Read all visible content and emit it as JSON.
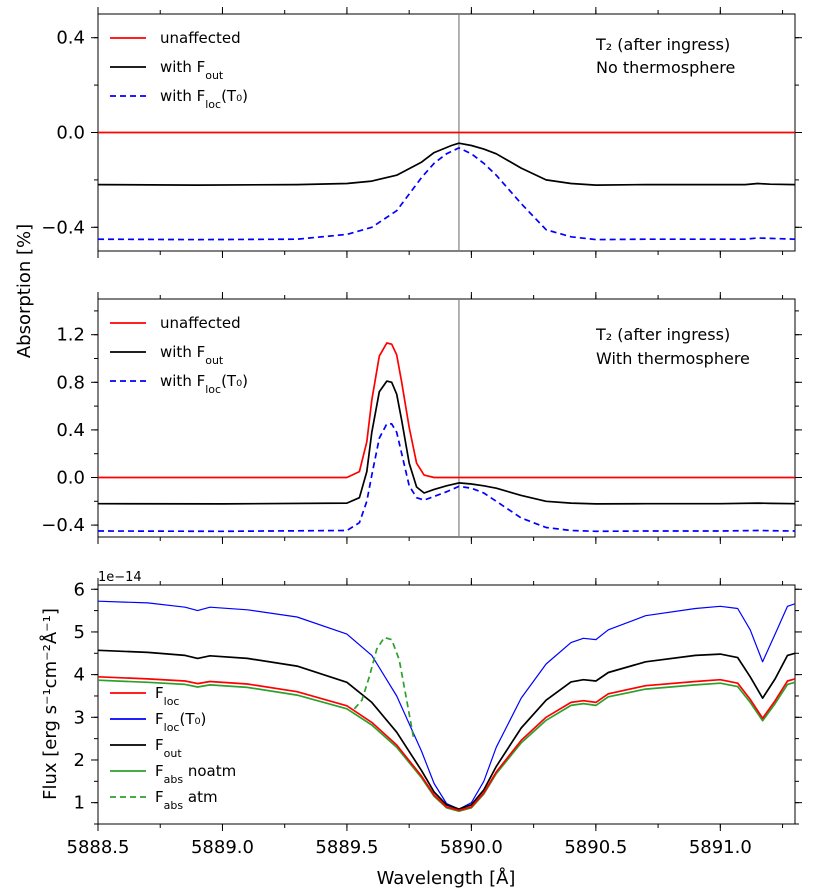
{
  "chart_data": [
    {
      "type": "line",
      "panel": "top",
      "xlim": [
        5888.5,
        5891.3
      ],
      "ylim": [
        -0.5,
        0.5
      ],
      "yticks": [
        0.4,
        0.0,
        -0.4
      ],
      "ytick_labels": [
        "0.4",
        "0.0",
        "−0.4"
      ],
      "vline_x": 5889.95,
      "annotation": [
        "T₂ (after ingress)",
        "No thermosphere"
      ],
      "legend": [
        {
          "label": "unaffected",
          "color": "#ff0000",
          "dash": false
        },
        {
          "label": "with F_out",
          "color": "#000000",
          "dash": false
        },
        {
          "label": "with F_loc(T₀)",
          "color": "#0000ff",
          "dash": true
        }
      ],
      "series": [
        {
          "name": "unaffected",
          "color": "#ff0000",
          "dash": false,
          "width": 1.7,
          "x": [
            5888.5,
            5891.3
          ],
          "y": [
            0.0,
            0.0
          ]
        },
        {
          "name": "with F_out",
          "color": "#000000",
          "dash": false,
          "width": 1.7,
          "x": [
            5888.5,
            5888.9,
            5889.3,
            5889.5,
            5889.6,
            5889.7,
            5889.8,
            5889.85,
            5889.92,
            5889.95,
            5890.0,
            5890.05,
            5890.1,
            5890.2,
            5890.3,
            5890.4,
            5890.5,
            5890.7,
            5891.0,
            5891.1,
            5891.15,
            5891.2,
            5891.3
          ],
          "y": [
            -0.22,
            -0.222,
            -0.22,
            -0.215,
            -0.205,
            -0.18,
            -0.125,
            -0.085,
            -0.055,
            -0.045,
            -0.055,
            -0.07,
            -0.09,
            -0.15,
            -0.2,
            -0.215,
            -0.222,
            -0.22,
            -0.22,
            -0.22,
            -0.215,
            -0.218,
            -0.22
          ]
        },
        {
          "name": "with F_loc(T0)",
          "color": "#0000ff",
          "dash": true,
          "width": 1.7,
          "x": [
            5888.5,
            5888.9,
            5889.3,
            5889.5,
            5889.6,
            5889.7,
            5889.8,
            5889.85,
            5889.9,
            5889.95,
            5890.0,
            5890.05,
            5890.1,
            5890.2,
            5890.3,
            5890.4,
            5890.5,
            5890.7,
            5891.0,
            5891.1,
            5891.15,
            5891.2,
            5891.3
          ],
          "y": [
            -0.45,
            -0.452,
            -0.45,
            -0.43,
            -0.4,
            -0.33,
            -0.19,
            -0.13,
            -0.09,
            -0.065,
            -0.09,
            -0.13,
            -0.18,
            -0.3,
            -0.41,
            -0.44,
            -0.452,
            -0.45,
            -0.45,
            -0.45,
            -0.445,
            -0.447,
            -0.45
          ]
        }
      ]
    },
    {
      "type": "line",
      "panel": "middle",
      "xlim": [
        5888.5,
        5891.3
      ],
      "ylim": [
        -0.5,
        1.5
      ],
      "yticks": [
        1.2,
        0.8,
        0.4,
        0.0,
        -0.4
      ],
      "ytick_labels": [
        "1.2",
        "0.8",
        "0.4",
        "0.0",
        "−0.4"
      ],
      "ylabel": "Absorption [%]",
      "vline_x": 5889.95,
      "annotation": [
        "T₂ (after ingress)",
        "With thermosphere"
      ],
      "legend": [
        {
          "label": "unaffected",
          "color": "#ff0000",
          "dash": false
        },
        {
          "label": "with F_out",
          "color": "#000000",
          "dash": false
        },
        {
          "label": "with F_loc(T₀)",
          "color": "#0000ff",
          "dash": true
        }
      ],
      "series": [
        {
          "name": "unaffected",
          "color": "#ff0000",
          "dash": false,
          "width": 1.7,
          "x": [
            5888.5,
            5889.5,
            5889.55,
            5889.58,
            5889.6,
            5889.63,
            5889.66,
            5889.68,
            5889.7,
            5889.72,
            5889.75,
            5889.78,
            5889.81,
            5889.85,
            5891.3
          ],
          "y": [
            0.0,
            0.0,
            0.05,
            0.3,
            0.65,
            1.02,
            1.13,
            1.12,
            1.03,
            0.8,
            0.42,
            0.12,
            0.02,
            0.0,
            0.0
          ]
        },
        {
          "name": "with F_out",
          "color": "#000000",
          "dash": false,
          "width": 1.7,
          "x": [
            5888.5,
            5889.0,
            5889.5,
            5889.55,
            5889.58,
            5889.6,
            5889.63,
            5889.66,
            5889.68,
            5889.7,
            5889.72,
            5889.75,
            5889.78,
            5889.81,
            5889.85,
            5889.9,
            5889.95,
            5890.0,
            5890.05,
            5890.1,
            5890.2,
            5890.3,
            5890.4,
            5890.5,
            5890.7,
            5891.0,
            5891.15,
            5891.2,
            5891.3
          ],
          "y": [
            -0.22,
            -0.222,
            -0.215,
            -0.17,
            0.05,
            0.38,
            0.72,
            0.81,
            0.8,
            0.7,
            0.48,
            0.12,
            -0.08,
            -0.13,
            -0.1,
            -0.07,
            -0.045,
            -0.055,
            -0.07,
            -0.09,
            -0.15,
            -0.2,
            -0.215,
            -0.222,
            -0.22,
            -0.22,
            -0.215,
            -0.218,
            -0.22
          ]
        },
        {
          "name": "with F_loc(T0)",
          "color": "#0000ff",
          "dash": true,
          "width": 1.7,
          "x": [
            5888.5,
            5889.0,
            5889.5,
            5889.55,
            5889.58,
            5889.6,
            5889.63,
            5889.66,
            5889.68,
            5889.7,
            5889.72,
            5889.75,
            5889.78,
            5889.81,
            5889.85,
            5889.9,
            5889.95,
            5890.0,
            5890.05,
            5890.1,
            5890.2,
            5890.3,
            5890.4,
            5890.5,
            5890.7,
            5891.0,
            5891.15,
            5891.2,
            5891.3
          ],
          "y": [
            -0.45,
            -0.452,
            -0.445,
            -0.38,
            -0.2,
            0.02,
            0.33,
            0.45,
            0.45,
            0.38,
            0.2,
            -0.07,
            -0.17,
            -0.19,
            -0.16,
            -0.12,
            -0.075,
            -0.09,
            -0.13,
            -0.2,
            -0.34,
            -0.42,
            -0.445,
            -0.452,
            -0.45,
            -0.45,
            -0.445,
            -0.447,
            -0.45
          ]
        }
      ]
    },
    {
      "type": "line",
      "panel": "bottom",
      "xlim": [
        5888.5,
        5891.3
      ],
      "ylim": [
        0.5,
        6.1
      ],
      "yticks": [
        1,
        2,
        3,
        4,
        5,
        6
      ],
      "ytick_labels": [
        "1",
        "2",
        "3",
        "4",
        "5",
        "6"
      ],
      "xticks": [
        5888.5,
        5889.0,
        5889.5,
        5890.0,
        5890.5,
        5891.0
      ],
      "xtick_labels": [
        "5888.5",
        "5889.0",
        "5889.5",
        "5890.0",
        "5890.5",
        "5891.0"
      ],
      "offset_text": "1e−14",
      "ylabel": "Flux [erg s⁻¹cm⁻²Å⁻¹]",
      "xlabel": "Wavelength [Å]",
      "legend": [
        {
          "label": "F_loc",
          "color": "#ff0000",
          "dash": false
        },
        {
          "label": "F_loc(T₀)",
          "color": "#0000ff",
          "dash": false
        },
        {
          "label": "F_out",
          "color": "#000000",
          "dash": false
        },
        {
          "label": "F_abs noatm",
          "color": "#2ca02c",
          "dash": false
        },
        {
          "label": "F_abs atm",
          "color": "#2ca02c",
          "dash": true
        }
      ],
      "series": [
        {
          "name": "F_loc(T0)",
          "color": "#0000ff",
          "dash": false,
          "width": 1.2,
          "x": [
            5888.5,
            5888.7,
            5888.85,
            5888.9,
            5888.95,
            5889.1,
            5889.3,
            5889.5,
            5889.6,
            5889.7,
            5889.8,
            5889.85,
            5889.9,
            5889.95,
            5890.0,
            5890.05,
            5890.1,
            5890.2,
            5890.3,
            5890.4,
            5890.45,
            5890.5,
            5890.55,
            5890.7,
            5890.9,
            5891.0,
            5891.07,
            5891.12,
            5891.17,
            5891.22,
            5891.27,
            5891.3
          ],
          "y": [
            5.72,
            5.68,
            5.58,
            5.5,
            5.58,
            5.52,
            5.35,
            4.95,
            4.45,
            3.5,
            2.2,
            1.45,
            0.98,
            0.85,
            1.0,
            1.5,
            2.3,
            3.45,
            4.25,
            4.75,
            4.85,
            4.82,
            5.05,
            5.38,
            5.55,
            5.6,
            5.55,
            5.05,
            4.3,
            4.95,
            5.6,
            5.66
          ]
        },
        {
          "name": "F_out",
          "color": "#000000",
          "dash": false,
          "width": 1.7,
          "x": [
            5888.5,
            5888.7,
            5888.85,
            5888.9,
            5888.95,
            5889.1,
            5889.3,
            5889.5,
            5889.6,
            5889.7,
            5889.8,
            5889.85,
            5889.9,
            5889.95,
            5890.0,
            5890.05,
            5890.1,
            5890.2,
            5890.3,
            5890.4,
            5890.45,
            5890.5,
            5890.55,
            5890.7,
            5890.9,
            5891.0,
            5891.07,
            5891.12,
            5891.17,
            5891.22,
            5891.27,
            5891.3
          ],
          "y": [
            4.57,
            4.52,
            4.45,
            4.38,
            4.44,
            4.38,
            4.2,
            3.82,
            3.35,
            2.65,
            1.75,
            1.25,
            0.95,
            0.85,
            0.95,
            1.3,
            1.85,
            2.75,
            3.4,
            3.83,
            3.88,
            3.85,
            4.05,
            4.3,
            4.45,
            4.48,
            4.4,
            3.95,
            3.45,
            3.9,
            4.45,
            4.5
          ]
        },
        {
          "name": "F_abs noatm",
          "color": "#2ca02c",
          "dash": false,
          "width": 1.7,
          "x": [
            5888.5,
            5888.7,
            5888.85,
            5888.9,
            5888.95,
            5889.1,
            5889.3,
            5889.5,
            5889.6,
            5889.7,
            5889.8,
            5889.85,
            5889.9,
            5889.95,
            5890.0,
            5890.05,
            5890.1,
            5890.2,
            5890.3,
            5890.4,
            5890.45,
            5890.5,
            5890.55,
            5890.7,
            5890.9,
            5891.0,
            5891.07,
            5891.12,
            5891.17,
            5891.22,
            5891.27,
            5891.3
          ],
          "y": [
            3.87,
            3.82,
            3.77,
            3.71,
            3.76,
            3.7,
            3.52,
            3.2,
            2.82,
            2.3,
            1.58,
            1.15,
            0.88,
            0.8,
            0.88,
            1.2,
            1.68,
            2.4,
            2.93,
            3.28,
            3.32,
            3.28,
            3.48,
            3.66,
            3.76,
            3.8,
            3.72,
            3.35,
            2.92,
            3.32,
            3.77,
            3.82
          ]
        },
        {
          "name": "F_loc",
          "color": "#ff0000",
          "dash": false,
          "width": 1.7,
          "x": [
            5888.5,
            5888.7,
            5888.85,
            5888.9,
            5888.95,
            5889.1,
            5889.3,
            5889.5,
            5889.6,
            5889.7,
            5889.8,
            5889.85,
            5889.9,
            5889.95,
            5890.0,
            5890.05,
            5890.1,
            5890.2,
            5890.3,
            5890.4,
            5890.45,
            5890.5,
            5890.55,
            5890.7,
            5890.9,
            5891.0,
            5891.07,
            5891.12,
            5891.17,
            5891.22,
            5891.27,
            5891.3
          ],
          "y": [
            3.95,
            3.9,
            3.85,
            3.79,
            3.84,
            3.78,
            3.6,
            3.27,
            2.88,
            2.35,
            1.62,
            1.18,
            0.9,
            0.82,
            0.9,
            1.23,
            1.72,
            2.46,
            3.0,
            3.35,
            3.39,
            3.35,
            3.55,
            3.74,
            3.84,
            3.88,
            3.8,
            3.42,
            2.98,
            3.39,
            3.85,
            3.9
          ]
        },
        {
          "name": "F_abs atm",
          "color": "#2ca02c",
          "dash": true,
          "width": 1.7,
          "x": [
            5889.53,
            5889.56,
            5889.59,
            5889.62,
            5889.65,
            5889.68,
            5889.71,
            5889.74,
            5889.77
          ],
          "y": [
            3.2,
            3.4,
            3.95,
            4.6,
            4.87,
            4.82,
            4.35,
            3.4,
            2.45
          ]
        }
      ]
    }
  ]
}
